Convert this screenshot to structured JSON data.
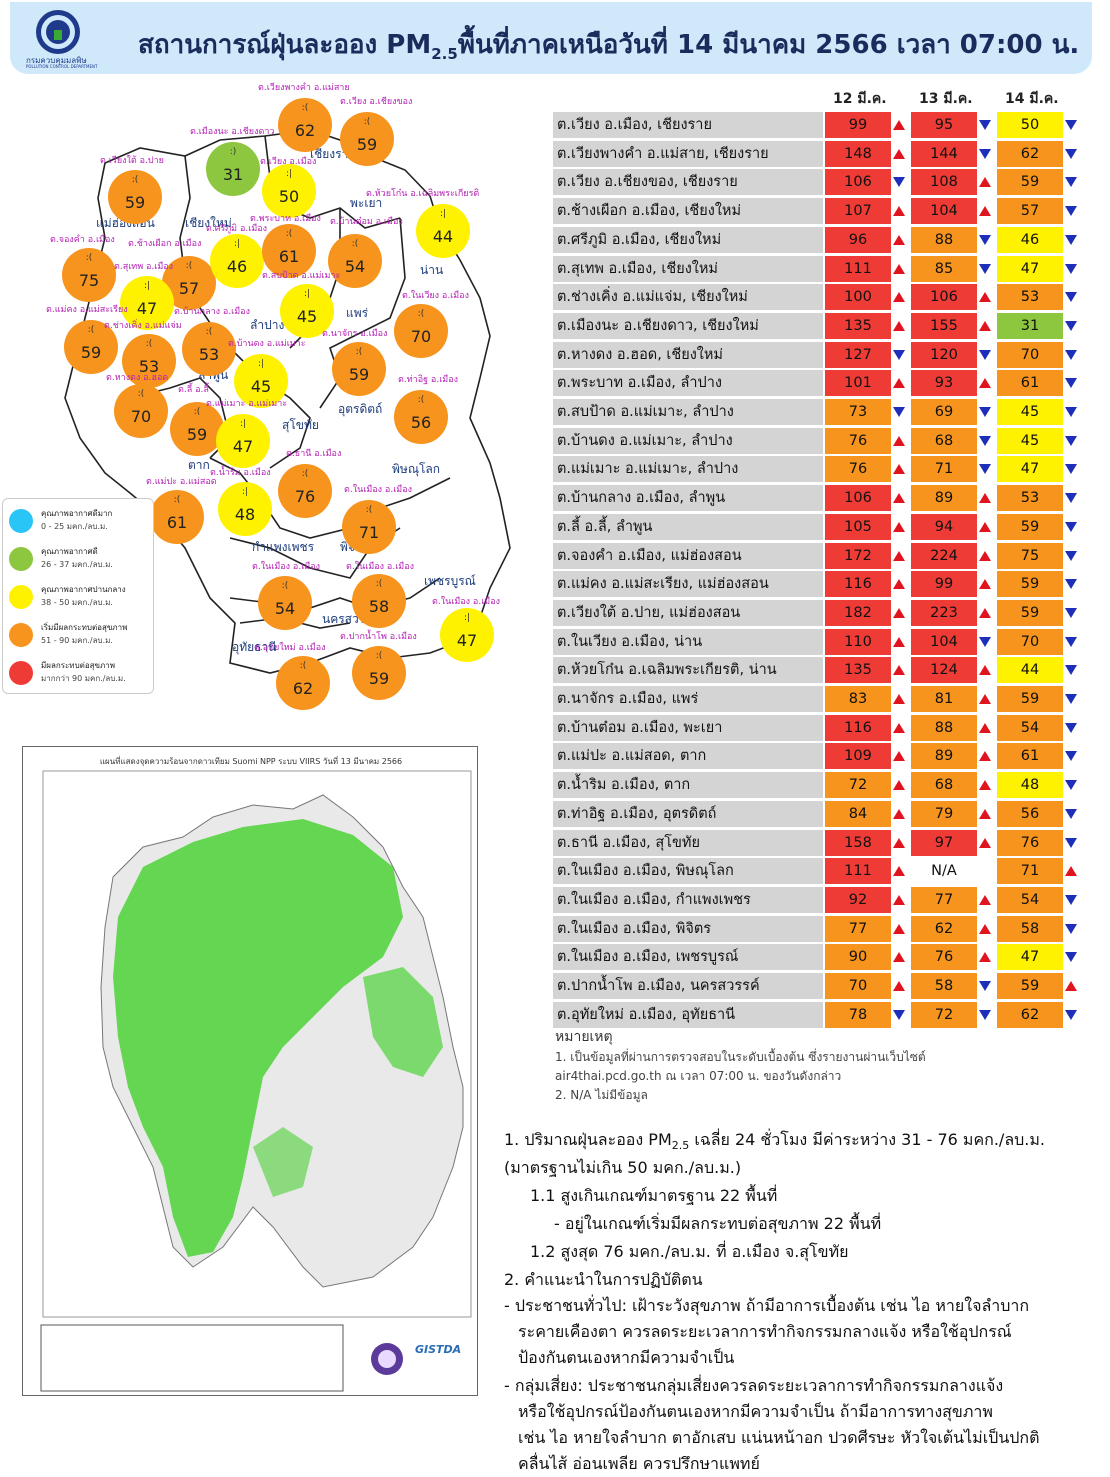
{
  "header": {
    "logo_text": "กรมควบคุมมลพิษ",
    "logo_subtext": "POLLUTION CONTROL DEPARTMENT",
    "title_prefix": "สถานการณ์ฝุ่นละออง PM",
    "title_sub": "2.5",
    "title_suffix": "พื้นที่ภาคเหนือวันที่ 14 มีนาคม 2566 เวลา 07:00 น."
  },
  "map": {
    "provinces": [
      "เชียงราย",
      "แม่ฮ่องสอน",
      "เชียงใหม่",
      "พะเยา",
      "น่าน",
      "ลำปาง",
      "แพร่",
      "ลำพูน",
      "อุตรดิตถ์",
      "สุโขทัย",
      "ตาก",
      "พิษณุโลก",
      "กำแพงเพชร",
      "พิจิตร",
      "เพชรบูรณ์",
      "นครสวรรค์",
      "อุทัยธานี"
    ],
    "stations": [
      {
        "label": "ต.เวียงพางคำ อ.แม่สาย",
        "value": "62",
        "color": "#f7941d"
      },
      {
        "label": "ต.เวียง อ.เชียงของ",
        "value": "59",
        "color": "#f7941d"
      },
      {
        "label": "ต.เมืองนะ อ.เชียงดาว",
        "value": "31",
        "color": "#8dc63f"
      },
      {
        "label": "ต.เวียง อ.เมือง",
        "value": "50",
        "color": "#fff200"
      },
      {
        "label": "ต.เวียงใต้ อ.ปาย",
        "value": "59",
        "color": "#f7941d"
      },
      {
        "label": "ต.ห้วยโก๋น อ.เฉลิมพระเกียรติ",
        "value": "44",
        "color": "#fff200"
      },
      {
        "label": "ต.จองคำ อ.เมือง",
        "value": "75",
        "color": "#f7941d"
      },
      {
        "label": "ต.ช้างเผือก อ.เมือง",
        "value": "57",
        "color": "#f7941d"
      },
      {
        "label": "ต.ศรีภูมิ อ.เมือง",
        "value": "46",
        "color": "#fff200"
      },
      {
        "label": "ต.พระบาท อ.เมือง",
        "value": "61",
        "color": "#f7941d"
      },
      {
        "label": "ต.บ้านต๋อม อ.เมือง",
        "value": "54",
        "color": "#f7941d"
      },
      {
        "label": "ต.สุเทพ อ.เมือง",
        "value": "47",
        "color": "#fff200"
      },
      {
        "label": "ต.สบป้าด อ.แม่เมาะ",
        "value": "45",
        "color": "#fff200"
      },
      {
        "label": "ต.ในเวียง อ.เมือง",
        "value": "70",
        "color": "#f7941d"
      },
      {
        "label": "ต.แม่คง อ.แม่สะเรียง",
        "value": "59",
        "color": "#f7941d"
      },
      {
        "label": "ต.ช่างเคิ่ง อ.แม่แจ่ม",
        "value": "53",
        "color": "#f7941d"
      },
      {
        "label": "ต.บ้านกลาง อ.เมือง",
        "value": "53",
        "color": "#f7941d"
      },
      {
        "label": "ต.นาจักร อ.เมือง",
        "value": "59",
        "color": "#f7941d"
      },
      {
        "label": "ต.บ้านดง อ.แม่เมาะ",
        "value": "45",
        "color": "#fff200"
      },
      {
        "label": "ต.หางดง อ.ฮอด",
        "value": "70",
        "color": "#f7941d"
      },
      {
        "label": "ต.ลี้ อ.ลี้",
        "value": "59",
        "color": "#f7941d"
      },
      {
        "label": "ต.แม่เมาะ อ.แม่เมาะ",
        "value": "47",
        "color": "#fff200"
      },
      {
        "label": "ต.ท่าอิฐ อ.เมือง",
        "value": "56",
        "color": "#f7941d"
      },
      {
        "label": "ต.ธานี อ.เมือง",
        "value": "76",
        "color": "#f7941d"
      },
      {
        "label": "ต.น้ำริม อ.เมือง",
        "value": "48",
        "color": "#fff200"
      },
      {
        "label": "ต.แม่ปะ อ.แม่สอด",
        "value": "61",
        "color": "#f7941d"
      },
      {
        "label": "ต.ในเมือง อ.เมือง",
        "value": "71",
        "color": "#f7941d"
      },
      {
        "label": "ต.ในเมือง อ.เมือง",
        "value": "54",
        "color": "#f7941d"
      },
      {
        "label": "ต.ในเมือง อ.เมือง",
        "value": "58",
        "color": "#f7941d"
      },
      {
        "label": "ต.ในเมือง อ.เมือง",
        "value": "47",
        "color": "#fff200"
      },
      {
        "label": "ต.ปากน้ำโพ อ.เมือง",
        "value": "59",
        "color": "#f7941d"
      },
      {
        "label": "ต.อุทัยใหม่ อ.เมือง",
        "value": "62",
        "color": "#f7941d"
      }
    ]
  },
  "legend": [
    {
      "title": "คุณภาพอากาศดีมาก",
      "range": "0 - 25 มคก./ลบ.ม.",
      "color": "#29c5f6"
    },
    {
      "title": "คุณภาพอากาศดี",
      "range": "26 - 37 มคก./ลบ.ม.",
      "color": "#8dc63f"
    },
    {
      "title": "คุณภาพอากาศปานกลาง",
      "range": "38 - 50 มคก./ลบ.ม.",
      "color": "#fff200"
    },
    {
      "title": "เริ่มมีผลกระทบต่อสุขภาพ",
      "range": "51 - 90 มคก./ลบ.ม.",
      "color": "#f7941d"
    },
    {
      "title": "มีผลกระทบต่อสุขภาพ",
      "range": "มากกว่า 90 มคก./ลบ.ม.",
      "color": "#ef3b36"
    }
  ],
  "hotspot": {
    "title": "แผนที่แสดงจุดความร้อนจากดาวเทียม Suomi NPP ระบบ VIIRS วันที่ 13 มีนาคม 2566",
    "org": "GISTDA"
  },
  "table": {
    "columns": [
      "12 มี.ค.",
      "13 มี.ค.",
      "14 มี.ค."
    ],
    "rows": [
      {
        "name": "ต.เวียง อ.เมือง, เชียงราย",
        "d12": "99",
        "t12": "up",
        "d13": "95",
        "t13": "down",
        "d14": "50",
        "t14": "down"
      },
      {
        "name": "ต.เวียงพางคำ อ.แม่สาย, เชียงราย",
        "d12": "148",
        "t12": "up",
        "d13": "144",
        "t13": "down",
        "d14": "62",
        "t14": "down"
      },
      {
        "name": "ต.เวียง อ.เชียงของ, เชียงราย",
        "d12": "106",
        "t12": "down",
        "d13": "108",
        "t13": "up",
        "d14": "59",
        "t14": "down"
      },
      {
        "name": "ต.ช้างเผือก อ.เมือง, เชียงใหม่",
        "d12": "107",
        "t12": "up",
        "d13": "104",
        "t13": "up",
        "d14": "57",
        "t14": "down"
      },
      {
        "name": "ต.ศรีภูมิ อ.เมือง, เชียงใหม่",
        "d12": "96",
        "t12": "up",
        "d13": "88",
        "t13": "down",
        "d14": "46",
        "t14": "down"
      },
      {
        "name": "ต.สุเทพ อ.เมือง, เชียงใหม่",
        "d12": "111",
        "t12": "up",
        "d13": "85",
        "t13": "down",
        "d14": "47",
        "t14": "down"
      },
      {
        "name": "ต.ช่างเคิ่ง อ.แม่แจ่ม, เชียงใหม่",
        "d12": "100",
        "t12": "up",
        "d13": "106",
        "t13": "up",
        "d14": "53",
        "t14": "down"
      },
      {
        "name": "ต.เมืองนะ อ.เชียงดาว, เชียงใหม่",
        "d12": "135",
        "t12": "up",
        "d13": "155",
        "t13": "up",
        "d14": "31",
        "t14": "down"
      },
      {
        "name": "ต.หางดง อ.ฮอด, เชียงใหม่",
        "d12": "127",
        "t12": "down",
        "d13": "120",
        "t13": "down",
        "d14": "70",
        "t14": "down"
      },
      {
        "name": "ต.พระบาท อ.เมือง, ลำปาง",
        "d12": "101",
        "t12": "up",
        "d13": "93",
        "t13": "up",
        "d14": "61",
        "t14": "down"
      },
      {
        "name": "ต.สบป้าด อ.แม่เมาะ, ลำปาง",
        "d12": "73",
        "t12": "down",
        "d13": "69",
        "t13": "down",
        "d14": "45",
        "t14": "down"
      },
      {
        "name": "ต.บ้านดง อ.แม่เมาะ, ลำปาง",
        "d12": "76",
        "t12": "up",
        "d13": "68",
        "t13": "down",
        "d14": "45",
        "t14": "down"
      },
      {
        "name": "ต.แม่เมาะ อ.แม่เมาะ, ลำปาง",
        "d12": "76",
        "t12": "up",
        "d13": "71",
        "t13": "down",
        "d14": "47",
        "t14": "down"
      },
      {
        "name": "ต.บ้านกลาง อ.เมือง, ลำพูน",
        "d12": "106",
        "t12": "up",
        "d13": "89",
        "t13": "up",
        "d14": "53",
        "t14": "down"
      },
      {
        "name": "ต.ลี้ อ.ลี้, ลำพูน",
        "d12": "105",
        "t12": "up",
        "d13": "94",
        "t13": "up",
        "d14": "59",
        "t14": "down"
      },
      {
        "name": "ต.จองคำ อ.เมือง, แม่ฮ่องสอน",
        "d12": "172",
        "t12": "up",
        "d13": "224",
        "t13": "up",
        "d14": "75",
        "t14": "down"
      },
      {
        "name": "ต.แม่คง อ.แม่สะเรียง, แม่ฮ่องสอน",
        "d12": "116",
        "t12": "up",
        "d13": "99",
        "t13": "up",
        "d14": "59",
        "t14": "down"
      },
      {
        "name": "ต.เวียงใต้ อ.ปาย, แม่ฮ่องสอน",
        "d12": "182",
        "t12": "up",
        "d13": "223",
        "t13": "up",
        "d14": "59",
        "t14": "down"
      },
      {
        "name": "ต.ในเวียง อ.เมือง, น่าน",
        "d12": "110",
        "t12": "up",
        "d13": "104",
        "t13": "down",
        "d14": "70",
        "t14": "down"
      },
      {
        "name": "ต.ห้วยโก๋น อ.เฉลิมพระเกียรติ, น่าน",
        "d12": "135",
        "t12": "up",
        "d13": "124",
        "t13": "up",
        "d14": "44",
        "t14": "down"
      },
      {
        "name": "ต.นาจักร อ.เมือง, แพร่",
        "d12": "83",
        "t12": "up",
        "d13": "81",
        "t13": "up",
        "d14": "59",
        "t14": "down"
      },
      {
        "name": "ต.บ้านต๋อม อ.เมือง, พะเยา",
        "d12": "116",
        "t12": "up",
        "d13": "88",
        "t13": "up",
        "d14": "54",
        "t14": "down"
      },
      {
        "name": "ต.แม่ปะ อ.แม่สอด, ตาก",
        "d12": "109",
        "t12": "up",
        "d13": "89",
        "t13": "up",
        "d14": "61",
        "t14": "down"
      },
      {
        "name": "ต.น้ำริม อ.เมือง, ตาก",
        "d12": "72",
        "t12": "up",
        "d13": "68",
        "t13": "up",
        "d14": "48",
        "t14": "down"
      },
      {
        "name": "ต.ท่าอิฐ อ.เมือง, อุตรดิตถ์",
        "d12": "84",
        "t12": "up",
        "d13": "79",
        "t13": "up",
        "d14": "56",
        "t14": "down"
      },
      {
        "name": "ต.ธานี อ.เมือง, สุโขทัย",
        "d12": "158",
        "t12": "up",
        "d13": "97",
        "t13": "up",
        "d14": "76",
        "t14": "down"
      },
      {
        "name": "ต.ในเมือง อ.เมือง, พิษณุโลก",
        "d12": "111",
        "t12": "up",
        "d13": "N/A",
        "t13": "",
        "d14": "71",
        "t14": "up"
      },
      {
        "name": "ต.ในเมือง อ.เมือง, กำแพงเพชร",
        "d12": "92",
        "t12": "up",
        "d13": "77",
        "t13": "up",
        "d14": "54",
        "t14": "down"
      },
      {
        "name": "ต.ในเมือง อ.เมือง, พิจิตร",
        "d12": "77",
        "t12": "up",
        "d13": "62",
        "t13": "up",
        "d14": "58",
        "t14": "down"
      },
      {
        "name": "ต.ในเมือง อ.เมือง, เพชรบูรณ์",
        "d12": "90",
        "t12": "up",
        "d13": "76",
        "t13": "up",
        "d14": "47",
        "t14": "down"
      },
      {
        "name": "ต.ปากน้ำโพ อ.เมือง, นครสวรรค์",
        "d12": "70",
        "t12": "up",
        "d13": "58",
        "t13": "down",
        "d14": "59",
        "t14": "up"
      },
      {
        "name": "ต.อุทัยใหม่ อ.เมือง, อุทัยธานี",
        "d12": "78",
        "t12": "down",
        "d13": "72",
        "t13": "down",
        "d14": "62",
        "t14": "down"
      }
    ]
  },
  "notes": {
    "heading": "หมายเหตุ",
    "n1a": "1. เป็นข้อมูลที่ผ่านการตรวจสอบในระดับเบื้องต้น ซึ่งรายงานผ่านเว็บไซต์",
    "n1b": "air4thai.pcd.go.th ณ เวลา 07:00 น. ของวันดังกล่าว",
    "n2": "2. N/A ไม่มีข้อมูล"
  },
  "summary": {
    "l1a": "1. ปริมาณฝุ่นละออง PM",
    "l1sub": "2.5",
    "l1b": " เฉลี่ย 24 ชั่วโมง มีค่าระหว่าง 31 - 76 มคก./ลบ.ม.",
    "l2": "(มาตรฐานไม่เกิน 50 มคก./ลบ.ม.)",
    "l3": "1.1 สูงเกินเกณฑ์มาตรฐาน 22 พื้นที่",
    "l4": "- อยู่ในเกณฑ์เริ่มมีผลกระทบต่อสุขภาพ 22 พื้นที่",
    "l5": "1.2 สูงสุด 76 มคก./ลบ.ม. ที่ อ.เมือง จ.สุโขทัย",
    "l6": "2. คำแนะนำในการปฏิบัติตน",
    "l7": "- ประชาชนทั่วไป: เฝ้าระวังสุขภาพ ถ้ามีอาการเบื้องต้น เช่น ไอ หายใจลำบาก",
    "l8": "ระคายเคืองตา ควรลดระยะเวลาการทำกิจกรรมกลางแจ้ง หรือใช้อุปกรณ์",
    "l9": "ป้องกันตนเองหากมีความจำเป็น",
    "l10": "- กลุ่มเสี่ยง: ประชาชนกลุ่มเสี่ยงควรลดระยะเวลาการทำกิจกรรมกลางแจ้ง",
    "l11": "หรือใช้อุปกรณ์ป้องกันตนเองหากมีความจำเป็น ถ้ามีอาการทางสุขภาพ",
    "l12": "เช่น ไอ หายใจลำบาก ตาอักเสบ แน่นหน้าอก ปวดศีรษะ หัวใจเต้นไม่เป็นปกติ",
    "l13": "คลื่นไส้ อ่อนเพลีย ควรปรึกษาแพทย์"
  }
}
